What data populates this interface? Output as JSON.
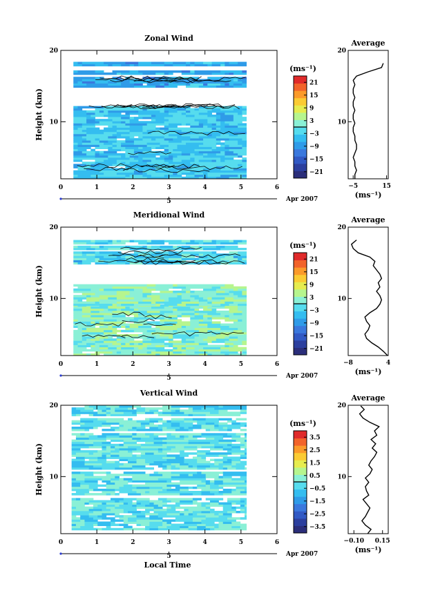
{
  "date_label": "Apr 2007",
  "colors": {
    "colormap": [
      "#2b2e7a",
      "#2c3f9e",
      "#3159c4",
      "#3a78dd",
      "#2f9be8",
      "#34bdf0",
      "#56dcee",
      "#8af0d6",
      "#b6f58e",
      "#e6ec4f",
      "#fbcb33",
      "#fb9a2a",
      "#f2632a",
      "#e02a2a"
    ]
  },
  "chart_data": [
    {
      "type": "heatmap",
      "title": "Zonal Wind",
      "xlabel": "",
      "ylabel": "Height (km)",
      "xlim": [
        0,
        6
      ],
      "ylim": [
        2,
        20
      ],
      "x_ticks": [
        "0",
        "1",
        "2",
        "3",
        "4",
        "5",
        "6"
      ],
      "y_ticks": [
        {
          "value": 10,
          "label": "10"
        },
        {
          "value": 20,
          "label": "20"
        }
      ],
      "date_axis_tick": "5",
      "data_time_range": [
        0.35,
        5.15
      ],
      "valid_height_bands": [
        [
          2.0,
          9.2
        ],
        [
          9.2,
          12.2
        ],
        [
          14.8,
          16.3
        ],
        [
          16.6,
          17.2
        ],
        [
          17.8,
          18.2
        ]
      ],
      "colorbar": {
        "unit": "(ms⁻¹)",
        "range": [
          -24,
          24
        ],
        "ticks": [
          "21",
          "15",
          "9",
          "3",
          "−3",
          "−9",
          "−15",
          "−21"
        ],
        "tick_values": [
          21,
          15,
          9,
          3,
          -3,
          -9,
          -15,
          -21
        ]
      },
      "profile": {
        "title": "Average",
        "xlabel": "(ms⁻¹)",
        "xlim": [
          -8,
          16
        ],
        "x_ticks": [
          "−5",
          "15"
        ],
        "x_tick_values": [
          -5,
          15
        ],
        "y_ticks": [
          "10",
          "20"
        ],
        "height": [
          2.0,
          2.6,
          3.2,
          3.8,
          4.4,
          5.0,
          5.6,
          6.2,
          6.8,
          7.4,
          8.0,
          8.6,
          9.2,
          9.8,
          10.4,
          11.0,
          11.6,
          12.2,
          12.8,
          13.4,
          14.0,
          14.6,
          15.2,
          15.8,
          16.4,
          17.0,
          17.6,
          18.2
        ],
        "value": [
          -4,
          -4,
          -3,
          -4,
          -4,
          -5,
          -4,
          -3,
          -3,
          -4,
          -4,
          -5,
          -5,
          -4,
          -5,
          -5,
          -4,
          -5,
          -5,
          -4,
          -5,
          -5,
          -4,
          -5,
          -3,
          4,
          12,
          13
        ]
      }
    },
    {
      "type": "heatmap",
      "title": "Meridional Wind",
      "xlabel": "",
      "ylabel": "Height (km)",
      "xlim": [
        0,
        6
      ],
      "ylim": [
        2,
        20
      ],
      "x_ticks": [
        "0",
        "1",
        "2",
        "3",
        "4",
        "5",
        "6"
      ],
      "y_ticks": [
        {
          "value": 10,
          "label": "10"
        },
        {
          "value": 20,
          "label": "20"
        }
      ],
      "date_axis_tick": "5",
      "data_time_range": [
        0.35,
        5.15
      ],
      "valid_height_bands": [
        [
          2.0,
          9.0
        ],
        [
          9.0,
          12.0
        ],
        [
          14.8,
          16.4
        ],
        [
          16.8,
          17.2
        ],
        [
          17.6,
          18.2
        ]
      ],
      "colorbar": {
        "unit": "(ms⁻¹)",
        "range": [
          -24,
          24
        ],
        "ticks": [
          "21",
          "15",
          "9",
          "3",
          "−3",
          "−9",
          "−15",
          "−21"
        ],
        "tick_values": [
          21,
          15,
          9,
          3,
          -3,
          -9,
          -15,
          -21
        ]
      },
      "profile": {
        "title": "Average",
        "xlabel": "(ms⁻¹)",
        "xlim": [
          -8,
          4
        ],
        "x_ticks": [
          "−8",
          "4"
        ],
        "x_tick_values": [
          -8,
          4
        ],
        "y_ticks": [
          "10",
          "20"
        ],
        "height": [
          2.0,
          2.6,
          3.2,
          3.8,
          4.4,
          5.0,
          5.6,
          6.2,
          6.8,
          7.4,
          8.0,
          8.6,
          9.2,
          9.8,
          10.4,
          11.0,
          11.6,
          12.2,
          12.8,
          13.4,
          14.0,
          14.6,
          15.2,
          15.8,
          16.4,
          17.0,
          17.6,
          18.2
        ],
        "value": [
          3.8,
          2.5,
          1.0,
          -1.0,
          -2.5,
          -3.0,
          -2.0,
          -1.5,
          -2.5,
          -3.0,
          -1.5,
          0.5,
          1.5,
          2.0,
          1.5,
          0.5,
          1.5,
          1.0,
          2.0,
          1.5,
          0.5,
          -0.5,
          0.0,
          -1.5,
          -5.0,
          -6.5,
          -7.0,
          -5.5
        ]
      }
    },
    {
      "type": "heatmap",
      "title": "Vertical Wind",
      "xlabel": "Local Time",
      "ylabel": "Height (km)",
      "xlim": [
        0,
        6
      ],
      "ylim": [
        2,
        20
      ],
      "x_ticks": [
        "0",
        "1",
        "2",
        "3",
        "4",
        "5",
        "6"
      ],
      "y_ticks": [
        {
          "value": 10,
          "label": "10"
        },
        {
          "value": 20,
          "label": "20"
        }
      ],
      "date_axis_tick": "5",
      "data_time_range": [
        0.3,
        5.15
      ],
      "valid_height_bands": [
        [
          2.5,
          7.0
        ],
        [
          7.4,
          10.6
        ],
        [
          11.0,
          16.0
        ],
        [
          16.4,
          18.2
        ],
        [
          18.5,
          19.9
        ]
      ],
      "colorbar": {
        "unit": "(ms⁻¹)",
        "range": [
          -4,
          4
        ],
        "ticks": [
          "3.5",
          "2.5",
          "1.5",
          "0.5",
          "−0.5",
          "−1.5",
          "−2.5",
          "−3.5"
        ],
        "tick_values": [
          3.5,
          2.5,
          1.5,
          0.5,
          -0.5,
          -1.5,
          -2.5,
          -3.5
        ]
      },
      "profile": {
        "title": "Average",
        "xlabel": "(ms⁻¹)",
        "xlim": [
          -0.15,
          0.2
        ],
        "x_ticks": [
          "−0.10",
          "0.15"
        ],
        "x_tick_values": [
          -0.1,
          0.15
        ],
        "y_ticks": [
          "10",
          "20"
        ],
        "height": [
          2.0,
          2.6,
          3.2,
          3.8,
          4.4,
          5.0,
          5.6,
          6.2,
          6.8,
          7.4,
          8.0,
          8.6,
          9.2,
          9.8,
          10.4,
          11.0,
          11.6,
          12.2,
          12.8,
          13.4,
          14.0,
          14.6,
          15.2,
          15.8,
          16.4,
          17.0,
          17.6,
          18.2,
          18.8,
          19.4,
          19.9
        ],
        "value": [
          0.02,
          0.05,
          0.0,
          -0.03,
          0.0,
          0.02,
          0.04,
          0.01,
          -0.02,
          0.03,
          0.01,
          0.0,
          0.03,
          0.0,
          0.04,
          0.06,
          0.03,
          0.05,
          0.08,
          0.1,
          0.06,
          0.09,
          0.05,
          0.1,
          0.08,
          0.12,
          0.04,
          -0.02,
          -0.05,
          -0.01,
          -0.04
        ]
      }
    }
  ]
}
